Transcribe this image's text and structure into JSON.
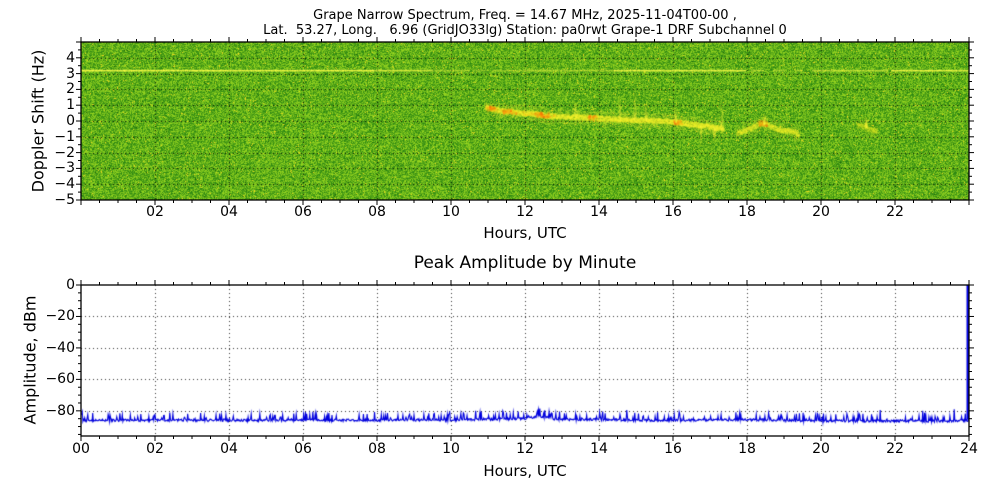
{
  "figure": {
    "kind": "dual-panel scientific plot (HamSCI Grape Doppler observation)"
  },
  "chart_data": [
    {
      "type": "heatmap",
      "name": "doppler-spectrogram",
      "title_line1": "Grape Narrow Spectrum, Freq. = 14.67 MHz, 2025-11-04T00-00 ,",
      "title_line2": "Lat.  53.27, Long.   6.96 (GridJO33lg) Station: pa0rwt Grape-1 DRF Subchannel 0",
      "xlabel": "Hours, UTC",
      "ylabel": "Doppler Shift (Hz)",
      "xlim": [
        0,
        24
      ],
      "ylim": [
        -5,
        5
      ],
      "grid": "dotted black, x every 2 h, y every 1 Hz",
      "xtick_values": [
        2,
        4,
        6,
        8,
        10,
        12,
        14,
        16,
        18,
        20,
        22
      ],
      "xtick_labels": [
        "02",
        "04",
        "06",
        "08",
        "10",
        "12",
        "14",
        "16",
        "18",
        "20",
        "22"
      ],
      "ytick_values": [
        4,
        3,
        2,
        1,
        0,
        -1,
        -2,
        -3,
        -4,
        -5
      ],
      "ytick_labels": [
        "4",
        "3",
        "2",
        "1",
        "0",
        "−1",
        "−2",
        "−3",
        "−4",
        "−5"
      ],
      "background": "uniform green receiver noise with light speckle",
      "noise_palette": [
        "#288400",
        "#55b40e",
        "#9bd51e",
        "#d8e628"
      ],
      "interference_line": {
        "doppler_hz": 3.25,
        "color": "#ffff50",
        "segments_hours_alpha": [
          [
            0.0,
            7.9,
            1.0
          ],
          [
            7.9,
            9.5,
            0.8
          ],
          [
            9.5,
            10.5,
            0.45
          ],
          [
            10.6,
            11.0,
            0.35
          ],
          [
            11.1,
            12.0,
            0.4
          ],
          [
            12.0,
            12.7,
            0.55
          ],
          [
            12.7,
            14.4,
            0.5
          ],
          [
            14.4,
            17.95,
            0.95
          ],
          [
            18.1,
            18.45,
            0.55
          ],
          [
            18.7,
            19.0,
            0.5
          ],
          [
            19.3,
            19.5,
            0.45
          ],
          [
            19.75,
            21.8,
            0.65
          ],
          [
            21.9,
            24.0,
            0.95
          ]
        ]
      },
      "carrier_trace": {
        "description": "carrier visible ~10:55-17:20, ~17:40-19:25 and ~21:00-21:30 UTC, drifting from ~+0.9 Hz down through 0 Hz",
        "segments": [
          {
            "intensity": 1.0,
            "points_hour_hz": [
              [
                10.9,
                0.95
              ],
              [
                11.2,
                0.75
              ],
              [
                11.7,
                0.6
              ],
              [
                12.2,
                0.5
              ],
              [
                12.7,
                0.35
              ],
              [
                13.4,
                0.3
              ],
              [
                14.1,
                0.2
              ],
              [
                15.0,
                0.1
              ],
              [
                15.8,
                0.05
              ],
              [
                16.3,
                -0.1
              ],
              [
                16.8,
                -0.25
              ],
              [
                17.35,
                -0.45
              ]
            ]
          },
          {
            "intensity": 0.75,
            "points_hour_hz": [
              [
                17.7,
                -0.7
              ],
              [
                18.0,
                -0.5
              ],
              [
                18.35,
                -0.1
              ],
              [
                18.6,
                -0.25
              ],
              [
                18.9,
                -0.55
              ],
              [
                19.15,
                -0.55
              ],
              [
                19.4,
                -0.8
              ]
            ]
          },
          {
            "intensity": 0.45,
            "points_hour_hz": [
              [
                20.95,
                -0.2
              ],
              [
                21.15,
                -0.3
              ],
              [
                21.35,
                -0.5
              ],
              [
                21.5,
                -0.6
              ]
            ]
          }
        ],
        "hot_spots_hour_hz": [
          [
            11.05,
            0.85
          ],
          [
            11.5,
            0.65
          ],
          [
            12.35,
            0.45
          ],
          [
            12.5,
            0.4
          ],
          [
            13.8,
            0.25
          ],
          [
            16.1,
            -0.05
          ],
          [
            18.4,
            -0.1
          ]
        ],
        "wisps_hour_hz": [
          [
            13.35,
            1.3
          ],
          [
            14.55,
            1.6
          ],
          [
            14.95,
            1.9
          ],
          [
            15.25,
            1.2
          ],
          [
            16.05,
            1.0
          ],
          [
            17.3,
            1.5
          ],
          [
            16.75,
            -1.5
          ],
          [
            17.1,
            -1.2
          ],
          [
            18.45,
            0.5
          ],
          [
            21.2,
            0.3
          ]
        ]
      }
    },
    {
      "type": "line",
      "name": "peak-amplitude",
      "title": "Peak Amplitude by Minute",
      "xlabel": "Hours, UTC",
      "ylabel": "Amplitude, dBm",
      "xlim": [
        0,
        24
      ],
      "ylim": [
        -96,
        0
      ],
      "grid": "dotted black, x every 2 h, y every 20 dBm",
      "xtick_values": [
        0,
        2,
        4,
        6,
        8,
        10,
        12,
        14,
        16,
        18,
        20,
        22,
        24
      ],
      "xtick_labels": [
        "00",
        "02",
        "04",
        "06",
        "08",
        "10",
        "12",
        "14",
        "16",
        "18",
        "20",
        "22",
        "24"
      ],
      "ytick_values": [
        0,
        -20,
        -40,
        -60,
        -80
      ],
      "ytick_labels": [
        "0",
        "−20",
        "−40",
        "−60",
        "−80"
      ],
      "line_color": "#0000dd",
      "baseline_dbm": -86.3,
      "noise_spike_ceiling_dbm": -79.5,
      "envelope_hour_dbm": [
        [
          0,
          -85.9
        ],
        [
          2,
          -85.9
        ],
        [
          4,
          -85.9
        ],
        [
          6,
          -85.9
        ],
        [
          8,
          -85.8
        ],
        [
          10,
          -85.6
        ],
        [
          11,
          -85.3
        ],
        [
          12,
          -84.9
        ],
        [
          12.4,
          -83.4
        ],
        [
          13,
          -85.6
        ],
        [
          14,
          -85.3
        ],
        [
          15,
          -85.9
        ],
        [
          16,
          -85.9
        ],
        [
          17,
          -85.7
        ],
        [
          18,
          -85.5
        ],
        [
          19,
          -85.9
        ],
        [
          20,
          -86.2
        ],
        [
          21,
          -86.4
        ],
        [
          22,
          -86.3
        ],
        [
          23,
          -86.4
        ],
        [
          24,
          -86.2
        ]
      ],
      "notable_spikes_hour_dbm": [
        [
          0.03,
          -80.5
        ],
        [
          12.4,
          -78.5
        ],
        [
          14.75,
          -79.5
        ],
        [
          21.6,
          -79.5
        ],
        [
          22.75,
          -80
        ],
        [
          23.6,
          -79
        ]
      ],
      "end_spike_hour_dbm": [
        24,
        0
      ]
    }
  ]
}
